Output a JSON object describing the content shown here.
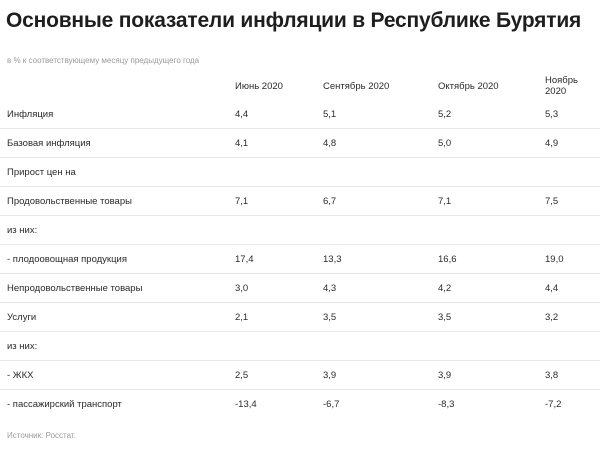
{
  "title": "Основные показатели инфляции в Республике Бурятия",
  "subtitle": "в % к соответствующему месяцу предыдущего года",
  "table": {
    "headers": [
      "",
      "Июнь 2020",
      "Сентябрь 2020",
      "Октябрь 2020",
      "Ноябрь 2020"
    ],
    "rows": [
      [
        "Инфляция",
        "4,4",
        "5,1",
        "5,2",
        "5,3"
      ],
      [
        "Базовая инфляция",
        "4,1",
        "4,8",
        "5,0",
        "4,9"
      ],
      [
        "Прирост цен на",
        "",
        "",
        "",
        ""
      ],
      [
        "Продовольственные товары",
        "7,1",
        "6,7",
        "7,1",
        "7,5"
      ],
      [
        "из них:",
        "",
        "",
        "",
        ""
      ],
      [
        "- плодоовощная продукция",
        "17,4",
        "13,3",
        "16,6",
        "19,0"
      ],
      [
        "Непродовольственные товары",
        "3,0",
        "4,3",
        "4,2",
        "4,4"
      ],
      [
        "Услуги",
        "2,1",
        "3,5",
        "3,5",
        "3,2"
      ],
      [
        "из них:",
        "",
        "",
        "",
        ""
      ],
      [
        "- ЖКХ",
        "2,5",
        "3,9",
        "3,9",
        "3,8"
      ],
      [
        "- пассажирский транспорт",
        "-13,4",
        "-6,7",
        "-8,3",
        "-7,2"
      ]
    ]
  },
  "source": "Источник: Росстат."
}
